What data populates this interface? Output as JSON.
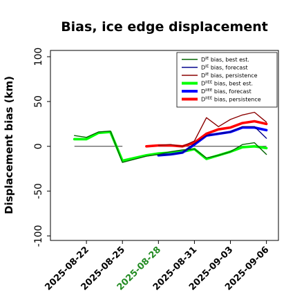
{
  "chart_data": {
    "type": "line",
    "title": "Bias, ice edge displacement",
    "xlabel": "",
    "ylabel": "Displacement bias (km)",
    "ylim": [
      -105,
      107
    ],
    "xlim": [
      "2025-08-19",
      "2025-09-07"
    ],
    "yticks": [
      -100,
      -50,
      0,
      50,
      100
    ],
    "xticks": [
      "2025-08-22",
      "2025-08-25",
      "2025-08-28",
      "2025-08-31",
      "2025-09-03",
      "2025-09-06"
    ],
    "highlight_tick": "2025-08-28",
    "highlight_color": "#228b22",
    "grid": false,
    "zero_line": true,
    "legend_position": "top-right",
    "series": [
      {
        "name": "D",
        "sup": "IE",
        "suffix": " bias, best est.",
        "color": "#006400",
        "width": "thin",
        "points": [
          [
            "2025-08-21",
            12
          ],
          [
            "2025-08-22",
            10
          ],
          [
            "2025-08-23",
            16
          ],
          [
            "2025-08-24",
            17
          ],
          [
            "2025-08-25",
            -18
          ],
          [
            "2025-08-27",
            -11
          ],
          [
            "2025-08-28",
            -9
          ],
          [
            "2025-08-29",
            -6
          ],
          [
            "2025-08-30",
            -4
          ],
          [
            "2025-08-31",
            -3
          ],
          [
            "2025-09-01",
            -13
          ],
          [
            "2025-09-02",
            -10
          ],
          [
            "2025-09-03",
            -6
          ],
          [
            "2025-09-04",
            2
          ],
          [
            "2025-09-05",
            4
          ],
          [
            "2025-09-06",
            -9
          ]
        ]
      },
      {
        "name": "D",
        "sup": "IE",
        "suffix": " bias, forecast",
        "color": "#00008b",
        "width": "thin",
        "points": [
          [
            "2025-08-28",
            -10
          ],
          [
            "2025-08-29",
            -9
          ],
          [
            "2025-08-30",
            -7
          ],
          [
            "2025-08-31",
            3
          ],
          [
            "2025-09-01",
            12
          ],
          [
            "2025-09-02",
            14
          ],
          [
            "2025-09-03",
            16
          ],
          [
            "2025-09-04",
            22
          ],
          [
            "2025-09-05",
            22
          ],
          [
            "2025-09-06",
            9
          ]
        ]
      },
      {
        "name": "D",
        "sup": "IE",
        "suffix": " bias, persistence",
        "color": "#8b0000",
        "width": "thin",
        "points": [
          [
            "2025-08-28",
            1
          ],
          [
            "2025-08-29",
            2
          ],
          [
            "2025-08-30",
            0
          ],
          [
            "2025-08-31",
            6
          ],
          [
            "2025-09-01",
            32
          ],
          [
            "2025-09-02",
            22
          ],
          [
            "2025-09-03",
            30
          ],
          [
            "2025-09-04",
            35
          ],
          [
            "2025-09-05",
            38
          ],
          [
            "2025-09-06",
            27
          ]
        ]
      },
      {
        "name": "D",
        "sup": "IIEE",
        "suffix": " bias, best est.",
        "color": "#00ff00",
        "width": "thick",
        "points": [
          [
            "2025-08-21",
            8
          ],
          [
            "2025-08-22",
            8
          ],
          [
            "2025-08-23",
            15
          ],
          [
            "2025-08-24",
            16
          ],
          [
            "2025-08-25",
            -16
          ],
          [
            "2025-08-27",
            -10
          ],
          [
            "2025-08-28",
            -8
          ],
          [
            "2025-08-29",
            -7
          ],
          [
            "2025-08-30",
            -6
          ],
          [
            "2025-08-31",
            -3
          ],
          [
            "2025-09-01",
            -14
          ],
          [
            "2025-09-02",
            -10
          ],
          [
            "2025-09-03",
            -6
          ],
          [
            "2025-09-04",
            -1
          ],
          [
            "2025-09-05",
            0
          ],
          [
            "2025-09-06",
            -2
          ]
        ]
      },
      {
        "name": "D",
        "sup": "IIEE",
        "suffix": " bias, forecast",
        "color": "#0000ff",
        "width": "thick",
        "points": [
          [
            "2025-08-28",
            -10
          ],
          [
            "2025-08-29",
            -9
          ],
          [
            "2025-08-30",
            -7
          ],
          [
            "2025-08-31",
            2
          ],
          [
            "2025-09-01",
            12
          ],
          [
            "2025-09-02",
            14
          ],
          [
            "2025-09-03",
            16
          ],
          [
            "2025-09-04",
            21
          ],
          [
            "2025-09-05",
            21
          ],
          [
            "2025-09-06",
            18
          ]
        ]
      },
      {
        "name": "D",
        "sup": "IIEE",
        "suffix": " bias, persistence",
        "color": "#ff0000",
        "width": "thick",
        "points": [
          [
            "2025-08-27",
            0
          ],
          [
            "2025-08-28",
            1
          ],
          [
            "2025-08-29",
            1
          ],
          [
            "2025-08-30",
            0
          ],
          [
            "2025-08-31",
            4
          ],
          [
            "2025-09-01",
            14
          ],
          [
            "2025-09-02",
            19
          ],
          [
            "2025-09-03",
            21
          ],
          [
            "2025-09-04",
            26
          ],
          [
            "2025-09-05",
            28
          ],
          [
            "2025-09-06",
            25
          ]
        ]
      }
    ]
  }
}
